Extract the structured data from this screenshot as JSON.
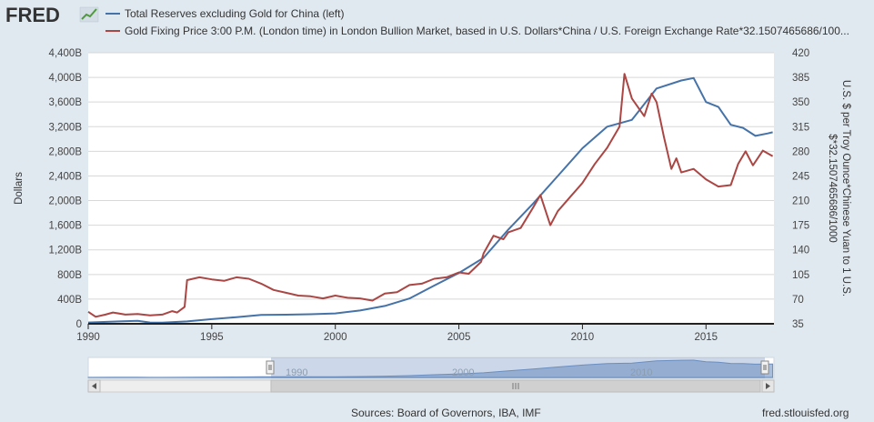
{
  "header": {
    "logo_text": "FRED",
    "logo_icon": "line-chart-icon"
  },
  "chart_data": {
    "type": "line",
    "x_ticks": [
      "1990",
      "1995",
      "2000",
      "2005",
      "2010",
      "2015"
    ],
    "x_range": [
      1990,
      2017.75
    ],
    "series": [
      {
        "name": "Total Reserves excluding Gold for China (left)",
        "axis": "left",
        "color": "#4572a7",
        "points": [
          [
            1990,
            21
          ],
          [
            1991,
            35
          ],
          [
            1992,
            49
          ],
          [
            1992.5,
            21
          ],
          [
            1993,
            19
          ],
          [
            1994,
            38
          ],
          [
            1995,
            75
          ],
          [
            1996,
            108
          ],
          [
            1997,
            143
          ],
          [
            1998,
            147
          ],
          [
            1999,
            155
          ],
          [
            2000,
            168
          ],
          [
            2001,
            215
          ],
          [
            2002,
            290
          ],
          [
            2003,
            410
          ],
          [
            2004,
            620
          ],
          [
            2005,
            825
          ],
          [
            2006,
            1070
          ],
          [
            2007,
            1530
          ],
          [
            2008,
            1950
          ],
          [
            2009,
            2400
          ],
          [
            2010,
            2850
          ],
          [
            2011,
            3200
          ],
          [
            2012,
            3310
          ],
          [
            2013,
            3820
          ],
          [
            2014,
            3950
          ],
          [
            2014.5,
            3990
          ],
          [
            2015,
            3600
          ],
          [
            2015.5,
            3520
          ],
          [
            2016,
            3230
          ],
          [
            2016.5,
            3180
          ],
          [
            2017,
            3050
          ],
          [
            2017.5,
            3090
          ],
          [
            2017.7,
            3110
          ]
        ]
      },
      {
        "name": "Gold Fixing Price 3:00 P.M. (London time) in London Bullion Market, based in U.S. Dollars*China / U.S. Foreign Exchange Rate*32.1507465686/100...",
        "axis": "right",
        "color": "#aa4643",
        "points": [
          [
            1990,
            52
          ],
          [
            1990.3,
            45
          ],
          [
            1990.7,
            48
          ],
          [
            1991,
            51
          ],
          [
            1991.5,
            48
          ],
          [
            1992,
            49
          ],
          [
            1992.5,
            47
          ],
          [
            1993,
            48
          ],
          [
            1993.4,
            53
          ],
          [
            1993.6,
            51
          ],
          [
            1993.9,
            59
          ],
          [
            1994,
            97
          ],
          [
            1994.5,
            101
          ],
          [
            1995,
            98
          ],
          [
            1995.5,
            96
          ],
          [
            1996,
            101
          ],
          [
            1996.5,
            99
          ],
          [
            1997,
            92
          ],
          [
            1997.5,
            83
          ],
          [
            1998,
            79
          ],
          [
            1998.5,
            75
          ],
          [
            1999,
            74
          ],
          [
            1999.5,
            71
          ],
          [
            2000,
            75
          ],
          [
            2000.5,
            72
          ],
          [
            2001,
            71
          ],
          [
            2001.5,
            68
          ],
          [
            2002,
            78
          ],
          [
            2002.5,
            80
          ],
          [
            2003,
            90
          ],
          [
            2003.5,
            92
          ],
          [
            2004,
            99
          ],
          [
            2004.5,
            101
          ],
          [
            2005,
            108
          ],
          [
            2005.4,
            106
          ],
          [
            2005.9,
            123
          ],
          [
            2006,
            135
          ],
          [
            2006.4,
            160
          ],
          [
            2006.8,
            155
          ],
          [
            2007,
            165
          ],
          [
            2007.5,
            171
          ],
          [
            2008,
            200
          ],
          [
            2008.3,
            218
          ],
          [
            2008.7,
            175
          ],
          [
            2009,
            195
          ],
          [
            2009.5,
            215
          ],
          [
            2010,
            235
          ],
          [
            2010.5,
            262
          ],
          [
            2011,
            285
          ],
          [
            2011.5,
            315
          ],
          [
            2011.7,
            390
          ],
          [
            2012,
            355
          ],
          [
            2012.5,
            330
          ],
          [
            2012.8,
            362
          ],
          [
            2013,
            350
          ],
          [
            2013.3,
            300
          ],
          [
            2013.6,
            255
          ],
          [
            2013.8,
            270
          ],
          [
            2014,
            250
          ],
          [
            2014.5,
            255
          ],
          [
            2015,
            240
          ],
          [
            2015.5,
            230
          ],
          [
            2016,
            232
          ],
          [
            2016.3,
            262
          ],
          [
            2016.6,
            280
          ],
          [
            2016.9,
            260
          ],
          [
            2017.3,
            281
          ],
          [
            2017.7,
            273
          ]
        ]
      }
    ],
    "left_axis": {
      "label": "Dollars",
      "min": 0,
      "max": 4400,
      "ticks": [
        "0",
        "400B",
        "800B",
        "1,200B",
        "1,600B",
        "2,000B",
        "2,400B",
        "2,800B",
        "3,200B",
        "3,600B",
        "4,000B",
        "4,400B"
      ]
    },
    "right_axis": {
      "label_line1": "U.S. $ per Troy Ounce*Chinese Yuan to 1 U.S.",
      "label_line2": "$*32.1507465686/1000",
      "min": 35,
      "max": 420,
      "ticks": [
        "35",
        "70",
        "105",
        "140",
        "175",
        "210",
        "245",
        "280",
        "315",
        "350",
        "385",
        "420"
      ]
    },
    "navigator_labels": [
      "1990",
      "2000",
      "2010"
    ],
    "source": "Sources: Board of Governors, IBA, IMF",
    "site": "fred.stlouisfed.org"
  }
}
